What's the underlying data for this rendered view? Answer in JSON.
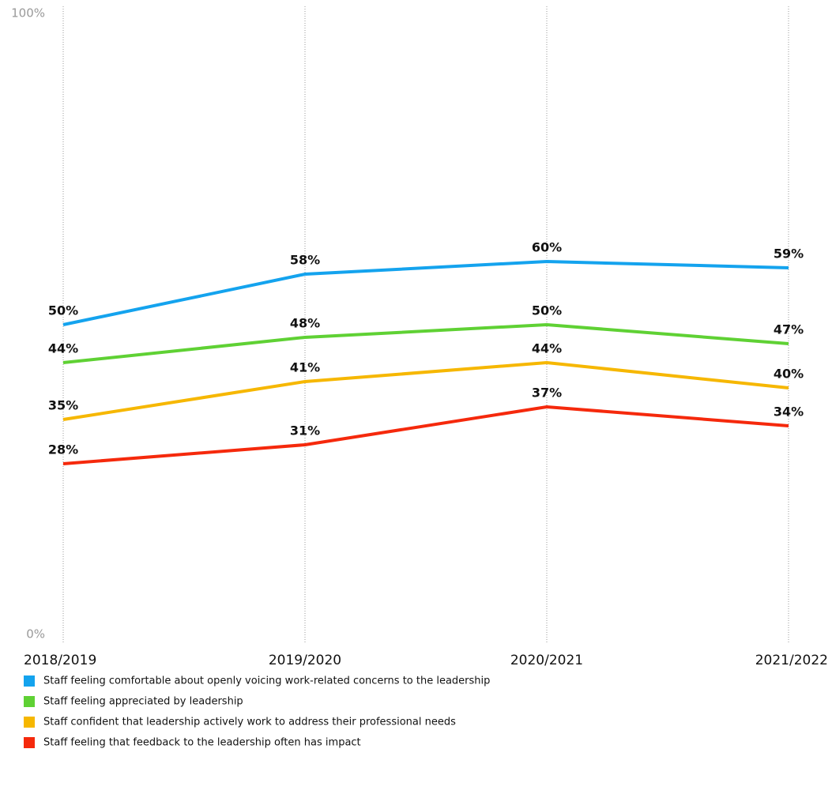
{
  "chart_data": {
    "type": "line",
    "categories": [
      "2018/2019",
      "2019/2020",
      "2020/2021",
      "2021/2022"
    ],
    "series": [
      {
        "name": "Staff feeling comfortable about openly voicing work-related concerns to the leadership",
        "color": "#14a3ee",
        "values": [
          50,
          58,
          60,
          59
        ],
        "value_labels": [
          "50%",
          "58%",
          "60%",
          "59%"
        ]
      },
      {
        "name": "Staff feeling appreciated by leadership",
        "color": "#5fd134",
        "values": [
          44,
          48,
          50,
          47
        ],
        "value_labels": [
          "44%",
          "48%",
          "50%",
          "47%"
        ]
      },
      {
        "name": "Staff confident that leadership actively work to address their professional needs",
        "color": "#f6b700",
        "values": [
          35,
          41,
          44,
          40
        ],
        "value_labels": [
          "35%",
          "41%",
          "44%",
          "40%"
        ]
      },
      {
        "name": "Staff feeling that feedback to the leadership often has impact",
        "color": "#f5290c",
        "values": [
          28,
          31,
          37,
          34
        ],
        "value_labels": [
          "28%",
          "31%",
          "37%",
          "34%"
        ]
      }
    ],
    "ylim": [
      0,
      100
    ],
    "yticks": [
      {
        "value": 0,
        "label": "0%"
      },
      {
        "value": 100,
        "label": "100%"
      }
    ],
    "grid": true
  }
}
